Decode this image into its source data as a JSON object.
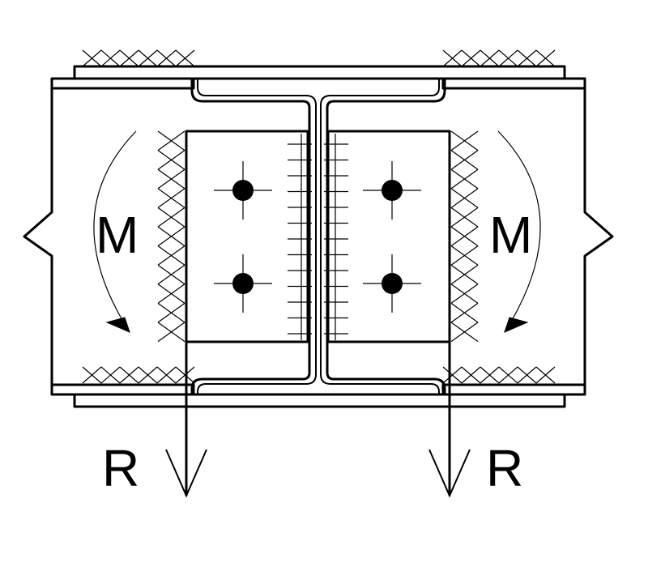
{
  "labels": {
    "moment_left": "M",
    "moment_right": "M",
    "reaction_left": "R",
    "reaction_right": "R"
  },
  "colors": {
    "stroke": "#000000",
    "background": "#ffffff"
  }
}
